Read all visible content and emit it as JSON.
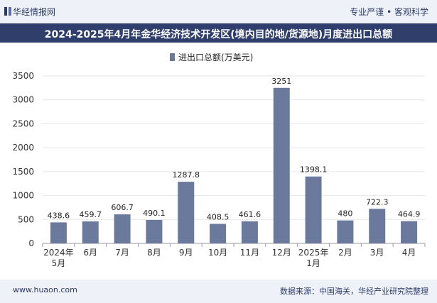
{
  "header": {
    "brand": "华经情报网",
    "tagline": "专业严谨 • 客观科学",
    "title": "2024-2025年4月年金华经济技术开发区(境内目的地/货源地)月度进出口总额"
  },
  "footer": {
    "website": "www.huaon.com",
    "source": "数据来源：中国海关，华经产业研究院整理"
  },
  "chart_data": {
    "type": "bar",
    "title": "2024-2025年4月年金华经济技术开发区(境内目的地/货源地)月度进出口总额",
    "categories": [
      [
        "2024年",
        "5月"
      ],
      [
        "6月"
      ],
      [
        "7月"
      ],
      [
        "8月"
      ],
      [
        "9月"
      ],
      [
        "10月"
      ],
      [
        "11月"
      ],
      [
        "12月"
      ],
      [
        "2025年",
        "1月"
      ],
      [
        "2月"
      ],
      [
        "3月"
      ],
      [
        "4月"
      ]
    ],
    "series": [
      {
        "name": "进出口总额(万美元)",
        "color": "#6b7a9c",
        "values": [
          438.6,
          459.7,
          606.7,
          490.1,
          1287.8,
          408.5,
          461.6,
          3251,
          1398.1,
          480,
          722.3,
          464.9
        ],
        "labels": [
          "438.6",
          "459.7",
          "606.7",
          "490.1",
          "1287.8",
          "408.5",
          "461.6",
          "3251",
          "1398.1",
          "480",
          "722.3",
          "464.9"
        ]
      }
    ],
    "ylim": [
      0,
      3500
    ],
    "yticks": [
      0,
      500,
      1000,
      1500,
      2000,
      2500,
      3000,
      3500
    ],
    "legend": "top-center",
    "xlabel": "",
    "ylabel": ""
  }
}
